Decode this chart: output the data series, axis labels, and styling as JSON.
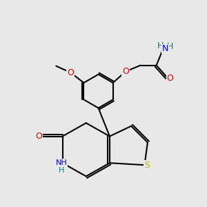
{
  "bg_color": "#e8e8e8",
  "bond_color": "#000000",
  "bond_width": 1.5,
  "figsize": [
    3.0,
    3.0
  ],
  "dpi": 100,
  "colors": {
    "S": "#b8b800",
    "O": "#dd0000",
    "N": "#0000cc",
    "H_amide": "#008080",
    "C": "#000000"
  },
  "xlim": [
    0,
    10
  ],
  "ylim": [
    0,
    10
  ]
}
